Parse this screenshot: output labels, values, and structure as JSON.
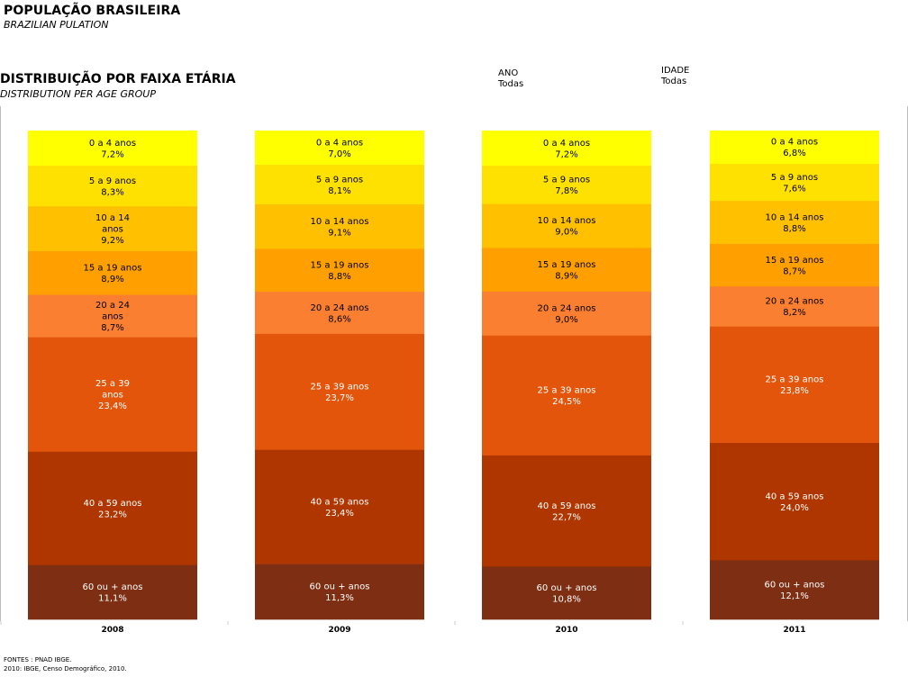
{
  "header": {
    "title": "POPULAÇÃO BRASILEIRA",
    "subtitle": "BRAZILIAN PULATION"
  },
  "section": {
    "title": "DISTRIBUIÇÃO POR FAIXA ETÁRIA",
    "subtitle": "DISTRIBUTION PER AGE GROUP"
  },
  "filters": {
    "ano": {
      "label": "ANO",
      "value": "Todas"
    },
    "idade": {
      "label": "IDADE",
      "value": "Todas"
    }
  },
  "sources": {
    "line1": "FONTES : PNAD IBGE.",
    "line2": "2010: IBGE, Censo Demográfico, 2010."
  },
  "chart_data": {
    "type": "bar",
    "stacked": true,
    "normalized": "100%",
    "categories": [
      "2008",
      "2009",
      "2010",
      "2011"
    ],
    "series": [
      {
        "name": "0 a 4 anos",
        "values": [
          7.2,
          7.0,
          7.2,
          6.8
        ],
        "labels": [
          "7,2%",
          "7,0%",
          "7,2%",
          "6,8%"
        ],
        "color": "#FFFF00",
        "text_color": "#000000"
      },
      {
        "name": "5 a 9 anos",
        "values": [
          8.3,
          8.1,
          7.8,
          7.6
        ],
        "labels": [
          "8,3%",
          "8,1%",
          "7,8%",
          "7,6%"
        ],
        "color": "#FFE100",
        "text_color": "#000000"
      },
      {
        "name": "10 a 14 anos",
        "values": [
          9.2,
          9.1,
          9.0,
          8.8
        ],
        "labels": [
          "9,2%",
          "9,1%",
          "9,0%",
          "8,8%"
        ],
        "color": "#FFC000",
        "text_color": "#000000"
      },
      {
        "name": "15 a 19 anos",
        "values": [
          8.9,
          8.8,
          8.9,
          8.7
        ],
        "labels": [
          "8,9%",
          "8,8%",
          "8,9%",
          "8,7%"
        ],
        "color": "#FFA000",
        "text_color": "#000000"
      },
      {
        "name": "20 a 24 anos",
        "values": [
          8.7,
          8.6,
          9.0,
          8.2
        ],
        "labels": [
          "8,7%",
          "8,6%",
          "9,0%",
          "8,2%"
        ],
        "color": "#FA7F30",
        "text_color": "#000000"
      },
      {
        "name": "25 a 39 anos",
        "values": [
          23.4,
          23.7,
          24.5,
          23.8
        ],
        "labels": [
          "23,4%",
          "23,7%",
          "24,5%",
          "23,8%"
        ],
        "color": "#E2550B",
        "text_color": "#FFFFFF"
      },
      {
        "name": "40 a 59 anos",
        "values": [
          23.2,
          23.4,
          22.7,
          24.0
        ],
        "labels": [
          "23,2%",
          "23,4%",
          "22,7%",
          "24,0%"
        ],
        "color": "#B03600",
        "text_color": "#FFFFFF"
      },
      {
        "name": "60 ou + anos",
        "values": [
          11.1,
          11.3,
          10.8,
          12.1
        ],
        "labels": [
          "11,1%",
          "11,3%",
          "10,8%",
          "12,1%"
        ],
        "color": "#7E2E12",
        "text_color": "#FFFFFF"
      }
    ],
    "segment_name_lines": {
      "2008": {
        "10 a 14 anos": [
          "10 a 14",
          "anos"
        ],
        "20 a 24 anos": [
          "20 a 24",
          "anos"
        ],
        "25 a 39 anos": [
          "25 a 39",
          "anos"
        ]
      }
    }
  }
}
